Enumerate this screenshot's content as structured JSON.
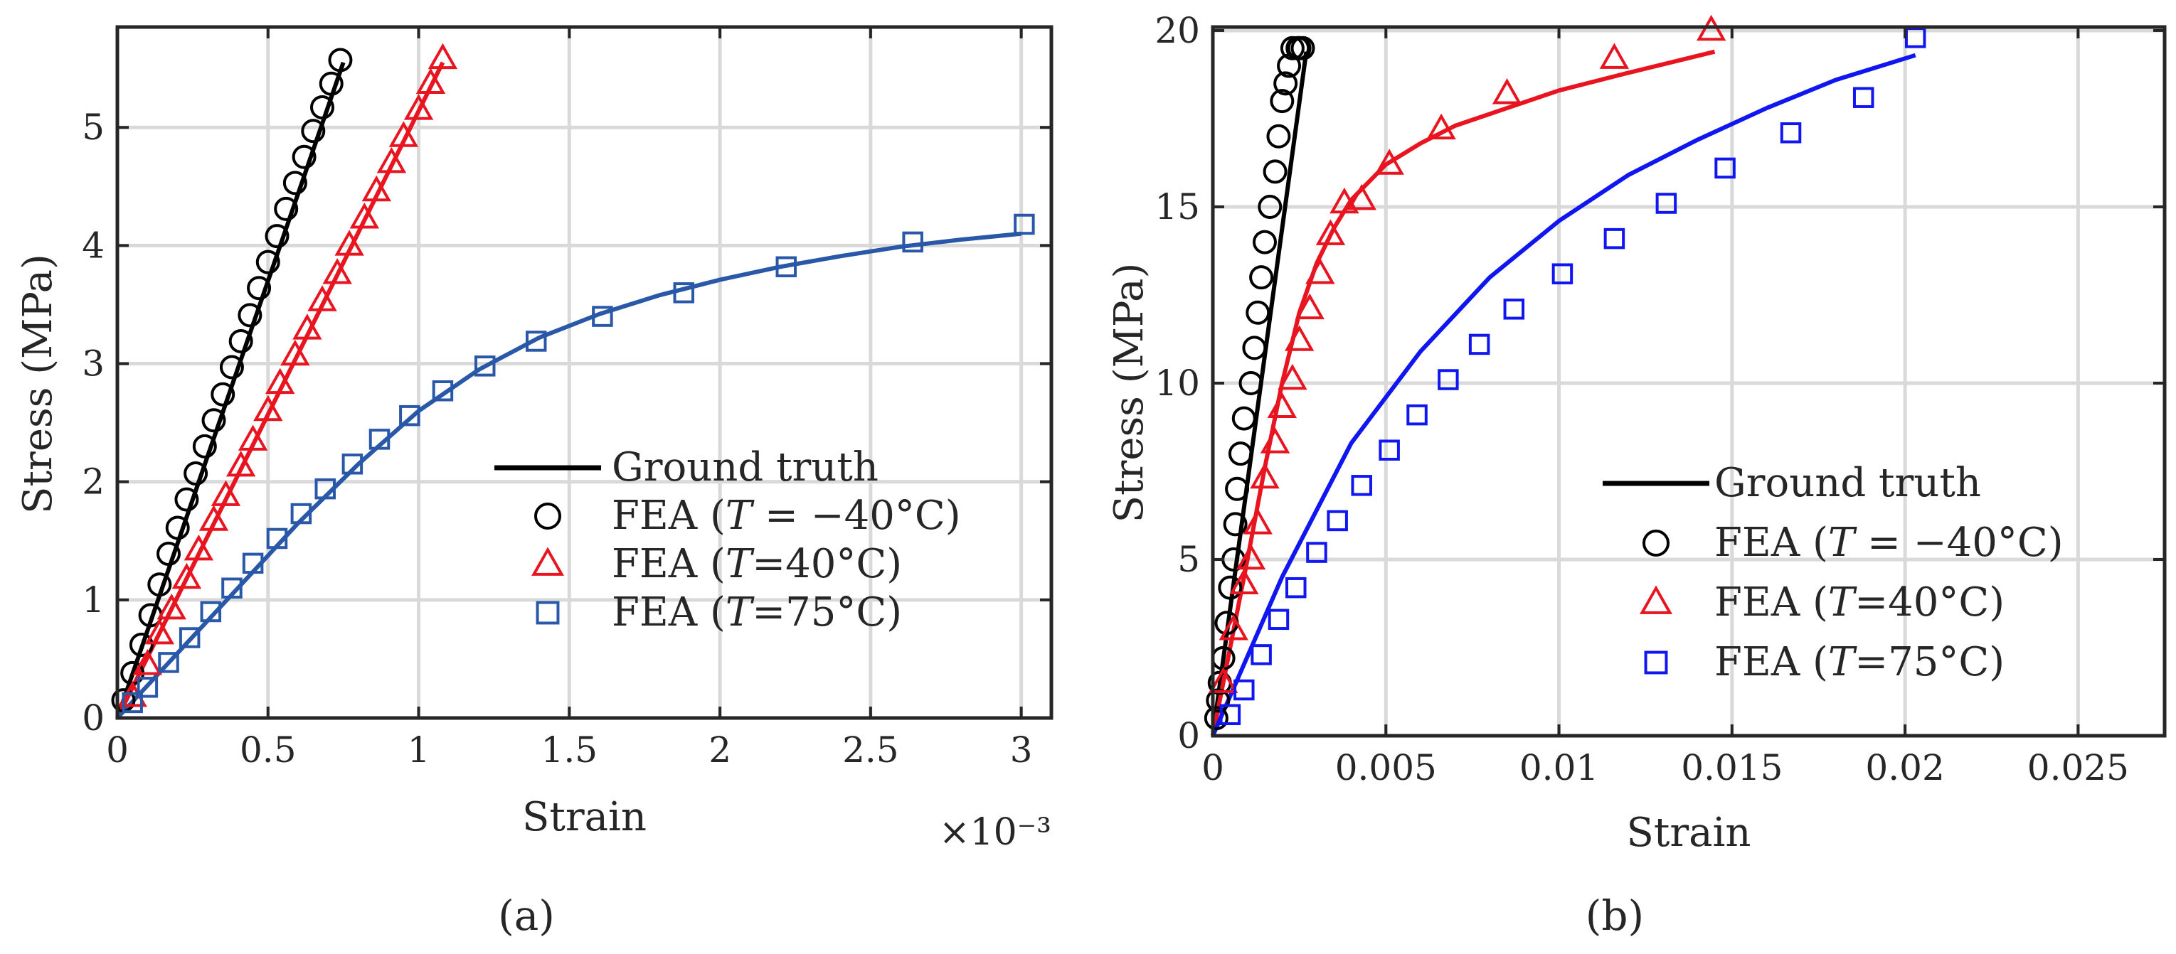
{
  "chart_data": [
    {
      "type": "scatter",
      "panel_label": "(a)",
      "xlabel": "Strain",
      "ylabel": "Stress (MPa)",
      "x_exponent_label": "×10⁻³",
      "xlim": [
        0,
        3.1
      ],
      "ylim": [
        0,
        5.85
      ],
      "xticks": [
        0,
        0.5,
        1,
        1.5,
        2,
        2.5,
        3
      ],
      "xtick_labels": [
        "0",
        "0.5",
        "1",
        "1.5",
        "2",
        "2.5",
        "3"
      ],
      "yticks": [
        0,
        1,
        2,
        3,
        4,
        5
      ],
      "ytick_labels": [
        "0",
        "1",
        "2",
        "3",
        "4",
        "5"
      ],
      "grid": true,
      "legend_position": "lower-right",
      "legend": {
        "line_label": "Ground truth",
        "items": [
          {
            "prefix": "FEA (",
            "italic": "T",
            "suffix": " = −40°C)"
          },
          {
            "prefix": "FEA (",
            "italic": "T",
            "suffix": "=40°C)"
          },
          {
            "prefix": "FEA (",
            "italic": "T",
            "suffix": "=75°C)"
          }
        ]
      },
      "series": [
        {
          "marker": "circle",
          "color": "#000000",
          "line": {
            "x": [
              0,
              0.75
            ],
            "y": [
              0,
              5.55
            ]
          },
          "points": {
            "x": [
              0.02,
              0.05,
              0.08,
              0.11,
              0.14,
              0.17,
              0.2,
              0.23,
              0.26,
              0.29,
              0.32,
              0.35,
              0.38,
              0.41,
              0.44,
              0.47,
              0.5,
              0.53,
              0.56,
              0.59,
              0.62,
              0.65,
              0.68,
              0.71,
              0.74
            ],
            "y": [
              0.15,
              0.38,
              0.62,
              0.87,
              1.13,
              1.39,
              1.61,
              1.85,
              2.07,
              2.3,
              2.52,
              2.74,
              2.97,
              3.19,
              3.41,
              3.64,
              3.86,
              4.08,
              4.31,
              4.53,
              4.75,
              4.97,
              5.17,
              5.37,
              5.57
            ]
          }
        },
        {
          "marker": "triangle",
          "color": "#e8141f",
          "line": {
            "x": [
              0,
              1.08
            ],
            "y": [
              0,
              5.55
            ]
          },
          "points": {
            "x": [
              0.05,
              0.1,
              0.14,
              0.18,
              0.23,
              0.27,
              0.32,
              0.36,
              0.41,
              0.45,
              0.5,
              0.54,
              0.59,
              0.63,
              0.68,
              0.73,
              0.77,
              0.82,
              0.86,
              0.91,
              0.95,
              1.0,
              1.04,
              1.08
            ],
            "y": [
              0.18,
              0.45,
              0.71,
              0.92,
              1.18,
              1.42,
              1.67,
              1.88,
              2.13,
              2.35,
              2.6,
              2.83,
              3.07,
              3.29,
              3.53,
              3.76,
              4.0,
              4.23,
              4.46,
              4.7,
              4.92,
              5.15,
              5.37,
              5.58
            ]
          }
        },
        {
          "marker": "square",
          "color": "#2a58a8",
          "line": {
            "x": [
              0,
              0.2,
              0.4,
              0.6,
              0.8,
              1.0,
              1.2,
              1.4,
              1.6,
              1.8,
              2.0,
              2.2,
              2.4,
              2.6,
              2.8,
              3.0
            ],
            "y": [
              0,
              0.55,
              1.1,
              1.65,
              2.15,
              2.6,
              2.95,
              3.22,
              3.42,
              3.58,
              3.71,
              3.82,
              3.91,
              3.99,
              4.05,
              4.1
            ]
          },
          "points": {
            "x": [
              0.05,
              0.1,
              0.17,
              0.24,
              0.31,
              0.38,
              0.45,
              0.53,
              0.61,
              0.69,
              0.78,
              0.87,
              0.97,
              1.08,
              1.22,
              1.39,
              1.61,
              1.88,
              2.22,
              2.64,
              3.01
            ],
            "y": [
              0.13,
              0.26,
              0.47,
              0.68,
              0.9,
              1.1,
              1.31,
              1.52,
              1.73,
              1.94,
              2.15,
              2.36,
              2.56,
              2.77,
              2.98,
              3.19,
              3.4,
              3.6,
              3.82,
              4.03,
              4.18
            ]
          }
        }
      ]
    },
    {
      "type": "scatter",
      "panel_label": "(b)",
      "xlabel": "Strain",
      "ylabel": "Stress (MPa)",
      "xlim": [
        0,
        0.0275
      ],
      "ylim": [
        0,
        20.1
      ],
      "xticks": [
        0,
        0.005,
        0.01,
        0.015,
        0.02,
        0.025
      ],
      "xtick_labels": [
        "0",
        "0.005",
        "0.01",
        "0.015",
        "0.02",
        "0.025"
      ],
      "yticks": [
        0,
        5,
        10,
        15,
        20
      ],
      "ytick_labels": [
        "0",
        "5",
        "10",
        "15",
        "20"
      ],
      "grid": true,
      "legend_position": "lower-right",
      "legend": {
        "line_label": "Ground truth",
        "items": [
          {
            "prefix": "FEA (",
            "italic": "T",
            "suffix": " = −40°C)"
          },
          {
            "prefix": "FEA (",
            "italic": "T",
            "suffix": "=40°C)"
          },
          {
            "prefix": "FEA (",
            "italic": "T",
            "suffix": "=75°C)"
          }
        ]
      },
      "series": [
        {
          "marker": "circle",
          "color": "#000000",
          "line": {
            "x": [
              0,
              0.0027
            ],
            "y": [
              0,
              19.4
            ]
          },
          "points": {
            "x": [
              0.0001,
              0.00015,
              0.0002,
              0.0003,
              0.0004,
              0.0005,
              0.0006,
              0.00065,
              0.0007,
              0.0008,
              0.0009,
              0.0011,
              0.0012,
              0.0013,
              0.0014,
              0.0015,
              0.00165,
              0.0018,
              0.0019,
              0.002,
              0.0021,
              0.0022,
              0.0023,
              0.00245,
              0.0025,
              0.0026
            ],
            "y": [
              0.5,
              1.0,
              1.5,
              2.2,
              3.2,
              4.2,
              5.0,
              6.0,
              7.0,
              8.0,
              9.0,
              10.0,
              11.0,
              12.0,
              13.0,
              14.0,
              15.0,
              16.0,
              17.0,
              18.0,
              18.5,
              19.0,
              19.5,
              19.5,
              19.5,
              19.5
            ]
          }
        },
        {
          "marker": "triangle",
          "color": "#e8141f",
          "line": {
            "x": [
              0,
              0.0005,
              0.001,
              0.0015,
              0.002,
              0.0025,
              0.003,
              0.0035,
              0.004,
              0.005,
              0.006,
              0.007,
              0.0085,
              0.01,
              0.012,
              0.0145
            ],
            "y": [
              0,
              2.5,
              5.0,
              7.6,
              10.0,
              12.0,
              13.4,
              14.4,
              15.2,
              16.2,
              16.8,
              17.3,
              17.8,
              18.3,
              18.8,
              19.4
            ]
          },
          "points": {
            "x": [
              0.0003,
              0.0006,
              0.0009,
              0.0011,
              0.0013,
              0.0015,
              0.0018,
              0.002,
              0.0023,
              0.0025,
              0.0028,
              0.0031,
              0.0034,
              0.0038,
              0.0043,
              0.0051,
              0.0066,
              0.0085,
              0.0116,
              0.0144
            ],
            "y": [
              1.5,
              3.0,
              4.3,
              5.0,
              6.0,
              7.3,
              8.3,
              9.3,
              10.1,
              11.2,
              12.1,
              13.1,
              14.2,
              15.1,
              15.2,
              16.2,
              17.2,
              18.2,
              19.2,
              20.0
            ]
          }
        },
        {
          "marker": "square",
          "color": "#1016f0",
          "line": {
            "x": [
              0,
              0.002,
              0.004,
              0.006,
              0.008,
              0.01,
              0.012,
              0.014,
              0.016,
              0.018,
              0.0203
            ],
            "y": [
              0,
              4.5,
              8.3,
              10.9,
              13.0,
              14.6,
              15.9,
              16.9,
              17.8,
              18.6,
              19.3
            ]
          },
          "points": {
            "x": [
              0.0005,
              0.0009,
              0.0014,
              0.0019,
              0.0024,
              0.003,
              0.0036,
              0.0043,
              0.0051,
              0.0059,
              0.0068,
              0.0077,
              0.0087,
              0.0101,
              0.0116,
              0.0131,
              0.0148,
              0.0167,
              0.0188,
              0.0203
            ],
            "y": [
              0.6,
              1.3,
              2.3,
              3.3,
              4.2,
              5.2,
              6.1,
              7.1,
              8.1,
              9.1,
              10.1,
              11.1,
              12.1,
              13.1,
              14.1,
              15.1,
              16.1,
              17.1,
              18.1,
              19.8
            ]
          }
        }
      ]
    }
  ]
}
